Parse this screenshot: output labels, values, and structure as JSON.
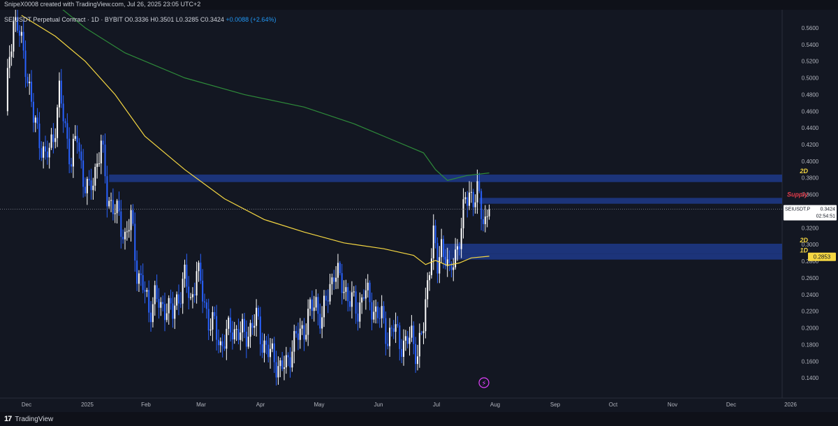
{
  "header": {
    "credit": "SnipeX0008 created with TradingView.com, Jul 26, 2025 23:05 UTC+2",
    "symbol": "SEIUSDT Perpetual Contract · 1D · BYBIT",
    "ohlc": "O0.3336 H0.3501 L0.3285 C0.3424",
    "change": "+0.0088 (+2.64%)"
  },
  "chart_data": {
    "type": "candlestick",
    "symbol": "SEIUSDT Perpetual Contract",
    "interval": "1D",
    "exchange": "BYBIT",
    "ylim": [
      0.12,
      0.57
    ],
    "y_ticks": [
      "0.5600",
      "0.5400",
      "0.5200",
      "0.5000",
      "0.4800",
      "0.4600",
      "0.4400",
      "0.4200",
      "0.4000",
      "0.3800",
      "0.3600",
      "0.3400",
      "0.3200",
      "0.3000",
      "0.2800",
      "0.2600",
      "0.2400",
      "0.2200",
      "0.2000",
      "0.1800",
      "0.1600",
      "0.1400"
    ],
    "x_ticks": [
      "Dec",
      "2025",
      "Feb",
      "Mar",
      "Apr",
      "May",
      "Jun",
      "Jul",
      "Aug",
      "Sep",
      "Oct",
      "Nov",
      "Dec",
      "2026"
    ],
    "price_path": [
      [
        0,
        0.46
      ],
      [
        2,
        0.53
      ],
      [
        4,
        0.57
      ],
      [
        6,
        0.56
      ],
      [
        10,
        0.52
      ],
      [
        14,
        0.45
      ],
      [
        17,
        0.43
      ],
      [
        20,
        0.4
      ],
      [
        24,
        0.43
      ],
      [
        27,
        0.48
      ],
      [
        30,
        0.44
      ],
      [
        33,
        0.4
      ],
      [
        36,
        0.43
      ],
      [
        39,
        0.38
      ],
      [
        42,
        0.36
      ],
      [
        45,
        0.39
      ],
      [
        48,
        0.42
      ],
      [
        51,
        0.36
      ],
      [
        54,
        0.345
      ],
      [
        57,
        0.33
      ],
      [
        60,
        0.31
      ],
      [
        63,
        0.33
      ],
      [
        66,
        0.27
      ],
      [
        69,
        0.25
      ],
      [
        72,
        0.22
      ],
      [
        75,
        0.24
      ],
      [
        78,
        0.22
      ],
      [
        81,
        0.23
      ],
      [
        84,
        0.215
      ],
      [
        87,
        0.24
      ],
      [
        90,
        0.26
      ],
      [
        93,
        0.23
      ],
      [
        96,
        0.27
      ],
      [
        99,
        0.24
      ],
      [
        102,
        0.21
      ],
      [
        105,
        0.2
      ],
      [
        108,
        0.18
      ],
      [
        111,
        0.19
      ],
      [
        114,
        0.2
      ],
      [
        117,
        0.195
      ],
      [
        120,
        0.19
      ],
      [
        123,
        0.2
      ],
      [
        126,
        0.21
      ],
      [
        129,
        0.185
      ],
      [
        132,
        0.17
      ],
      [
        135,
        0.165
      ],
      [
        138,
        0.15
      ],
      [
        141,
        0.155
      ],
      [
        144,
        0.18
      ],
      [
        147,
        0.19
      ],
      [
        150,
        0.2
      ],
      [
        153,
        0.22
      ],
      [
        156,
        0.23
      ],
      [
        159,
        0.21
      ],
      [
        162,
        0.24
      ],
      [
        165,
        0.27
      ],
      [
        168,
        0.255
      ],
      [
        171,
        0.245
      ],
      [
        174,
        0.23
      ],
      [
        177,
        0.22
      ],
      [
        180,
        0.245
      ],
      [
        183,
        0.23
      ],
      [
        186,
        0.22
      ],
      [
        189,
        0.21
      ],
      [
        192,
        0.19
      ],
      [
        195,
        0.2
      ],
      [
        198,
        0.185
      ],
      [
        201,
        0.18
      ],
      [
        204,
        0.19
      ],
      [
        207,
        0.17
      ],
      [
        210,
        0.2
      ],
      [
        213,
        0.28
      ],
      [
        215,
        0.31
      ],
      [
        217,
        0.27
      ],
      [
        219,
        0.3
      ],
      [
        221,
        0.29
      ],
      [
        223,
        0.26
      ],
      [
        225,
        0.28
      ],
      [
        227,
        0.3
      ],
      [
        229,
        0.32
      ],
      [
        231,
        0.35
      ],
      [
        233,
        0.365
      ],
      [
        235,
        0.355
      ],
      [
        237,
        0.36
      ],
      [
        239,
        0.34
      ],
      [
        241,
        0.33
      ],
      [
        243,
        0.3424
      ]
    ],
    "ma_slow_path": [
      [
        22,
        0.595
      ],
      [
        40,
        0.56
      ],
      [
        60,
        0.53
      ],
      [
        90,
        0.5
      ],
      [
        120,
        0.48
      ],
      [
        150,
        0.465
      ],
      [
        175,
        0.445
      ],
      [
        195,
        0.425
      ],
      [
        210,
        0.41
      ],
      [
        216,
        0.39
      ],
      [
        222,
        0.377
      ],
      [
        232,
        0.383
      ],
      [
        243,
        0.386
      ]
    ],
    "ma_fast_path": [
      [
        8,
        0.575
      ],
      [
        25,
        0.55
      ],
      [
        40,
        0.52
      ],
      [
        55,
        0.48
      ],
      [
        70,
        0.43
      ],
      [
        90,
        0.39
      ],
      [
        110,
        0.355
      ],
      [
        130,
        0.33
      ],
      [
        150,
        0.315
      ],
      [
        170,
        0.302
      ],
      [
        190,
        0.295
      ],
      [
        205,
        0.287
      ],
      [
        211,
        0.276
      ],
      [
        216,
        0.281
      ],
      [
        222,
        0.275
      ],
      [
        228,
        0.278
      ],
      [
        234,
        0.284
      ],
      [
        243,
        0.286
      ]
    ],
    "zones": [
      {
        "label": "2D",
        "color": "#f5d742",
        "from": 0.375,
        "to": 0.384,
        "start": 52
      },
      {
        "label": "Supply",
        "color": "#e33b4a",
        "from": 0.349,
        "to": 0.356,
        "start": 238
      },
      {
        "label": "2D",
        "color": "#f5d742",
        "from": 0.289,
        "to": 0.301,
        "start": 220
      },
      {
        "label": "1D",
        "color": "#f5d742",
        "from": 0.282,
        "to": 0.289,
        "start": 220
      }
    ],
    "last_price": "0.3424",
    "last_price_label": "SEIUSDT.P",
    "countdown": "02:54:51",
    "ma_value_label": "0.2853",
    "ma_value": 0.2853
  },
  "colors": {
    "background": "#131722",
    "candle_up": "#ffffff",
    "candle_down": "#2962ff",
    "ma_slow": "#2e8b3a",
    "ma_fast": "#f5d742",
    "zone": "#1e3a8a"
  },
  "footer": {
    "brand": "TradingView"
  }
}
